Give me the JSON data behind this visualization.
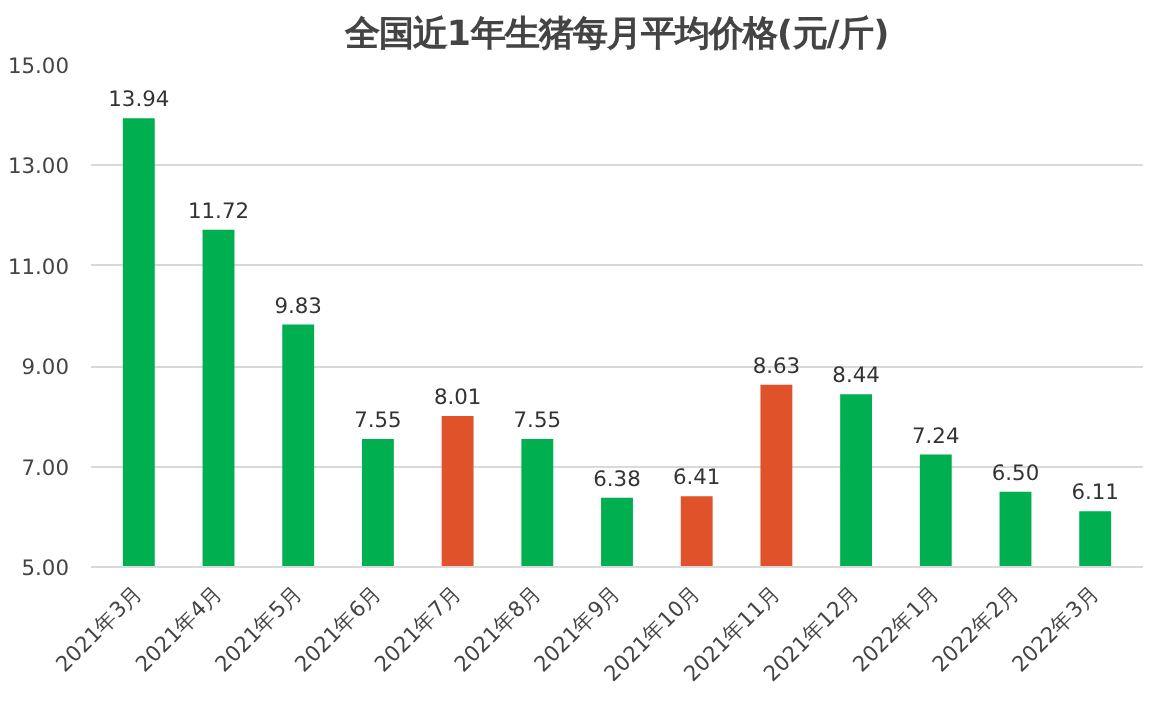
{
  "chart_data": {
    "type": "bar",
    "title": "全国近1年生猪每月平均价格(元/斤)",
    "categories": [
      "2021年3月",
      "2021年4月",
      "2021年5月",
      "2021年6月",
      "2021年7月",
      "2021年8月",
      "2021年9月",
      "2021年10月",
      "2021年11月",
      "2021年12月",
      "2022年1月",
      "2022年2月",
      "2022年3月"
    ],
    "values": [
      13.94,
      11.72,
      9.83,
      7.55,
      8.01,
      7.55,
      6.38,
      6.41,
      8.63,
      8.44,
      7.24,
      6.5,
      6.11
    ],
    "colors": [
      "#00b050",
      "#00b050",
      "#00b050",
      "#00b050",
      "#e0522a",
      "#00b050",
      "#00b050",
      "#e0522a",
      "#e0522a",
      "#00b050",
      "#00b050",
      "#00b050",
      "#00b050"
    ],
    "ylim": [
      5,
      15
    ],
    "yticks": [
      {
        "value": 5,
        "label": "5.00"
      },
      {
        "value": 7,
        "label": "7.00"
      },
      {
        "value": 9,
        "label": "9.00"
      },
      {
        "value": 11,
        "label": "11.00"
      },
      {
        "value": 13,
        "label": "13.00"
      },
      {
        "value": 15,
        "label": "15.00"
      }
    ],
    "value_labels": [
      "13.94",
      "11.72",
      "9.83",
      "7.55",
      "8.01",
      "7.55",
      "6.38",
      "6.41",
      "8.63",
      "8.44",
      "7.24",
      "6.50",
      "6.11"
    ],
    "grid": "y"
  }
}
